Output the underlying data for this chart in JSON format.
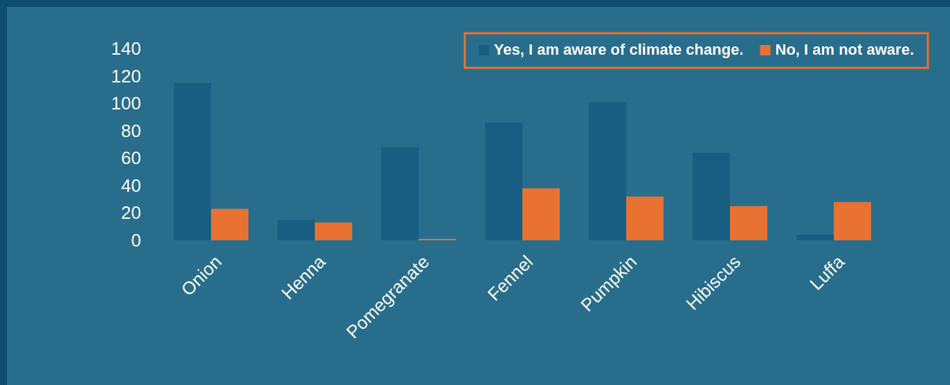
{
  "chart_data": {
    "type": "bar",
    "categories": [
      "Onion",
      "Henna",
      "Pomegranate",
      "Fennel",
      "Pumpkin",
      "Hibiscus",
      "Luffa"
    ],
    "series": [
      {
        "name": "Yes, I am aware of climate change.",
        "color": "#175e82",
        "values": [
          115,
          15,
          68,
          86,
          101,
          64,
          4
        ]
      },
      {
        "name": "No, I am not aware.",
        "color": "#e97132",
        "values": [
          23,
          13,
          1,
          38,
          32,
          25,
          28
        ]
      }
    ],
    "ylim": [
      0,
      140
    ],
    "yticks": [
      0,
      20,
      40,
      60,
      80,
      100,
      120,
      140
    ],
    "grid": false,
    "legend": "top right"
  }
}
